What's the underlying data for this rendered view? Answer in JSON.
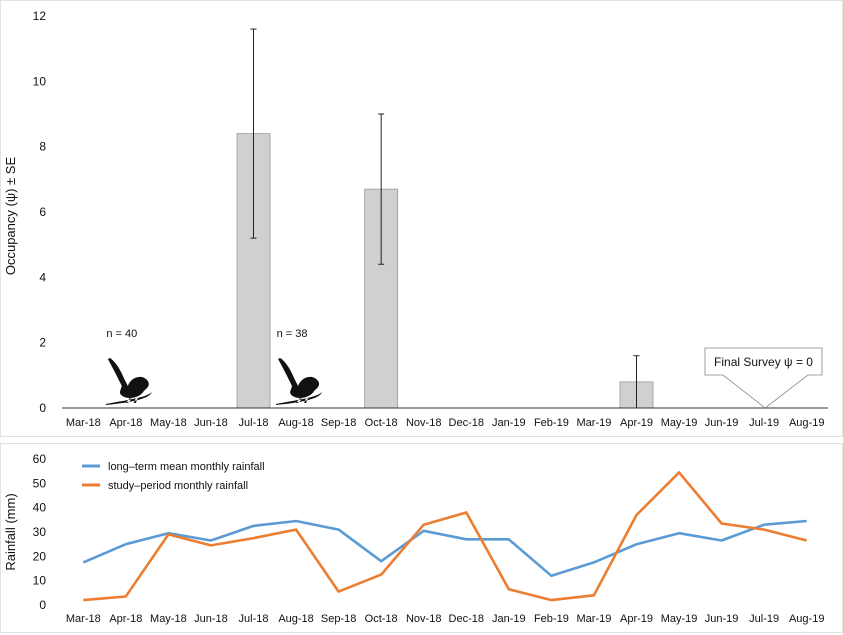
{
  "chart_data": [
    {
      "type": "bar",
      "ylabel": "Occupancy (ψ) ± SE",
      "ylim": [
        0,
        12
      ],
      "yticks": [
        0,
        2,
        4,
        6,
        8,
        10,
        12
      ],
      "grid": false,
      "categories": [
        "Mar-18",
        "Apr-18",
        "May-18",
        "Jun-18",
        "Jul-18",
        "Aug-18",
        "Sep-18",
        "Oct-18",
        "Nov-18",
        "Dec-18",
        "Jan-19",
        "Feb-19",
        "Mar-19",
        "Apr-19",
        "May-19",
        "Jun-19",
        "Jul-19",
        "Aug-19"
      ],
      "values": [
        0,
        0,
        0,
        0,
        8.4,
        0,
        0,
        6.7,
        0,
        0,
        0,
        0,
        0,
        0.8,
        0,
        0,
        0,
        0
      ],
      "errors": [
        null,
        null,
        null,
        null,
        3.2,
        null,
        null,
        2.3,
        null,
        null,
        null,
        null,
        null,
        0.8,
        null,
        null,
        null,
        null
      ],
      "bar_color": "#d0d0d0",
      "annotations": [
        {
          "text": "n = 40",
          "category": "Apr-18",
          "y": 2.3,
          "kind": "bird-silhouette"
        },
        {
          "text": "n = 38",
          "category": "Aug-18",
          "y": 2.3,
          "kind": "bird-silhouette"
        },
        {
          "text": "Final Survey ψ = 0",
          "category": "Jul-19",
          "y": 0,
          "kind": "callout"
        }
      ]
    },
    {
      "type": "line",
      "ylabel": "Rainfall (mm)",
      "ylim": [
        0,
        60
      ],
      "yticks": [
        0,
        10,
        20,
        30,
        40,
        50,
        60
      ],
      "grid": false,
      "legend": "top-left",
      "categories": [
        "Mar-18",
        "Apr-18",
        "May-18",
        "Jun-18",
        "Jul-18",
        "Aug-18",
        "Sep-18",
        "Oct-18",
        "Nov-18",
        "Dec-18",
        "Jan-19",
        "Feb-19",
        "Mar-19",
        "Apr-19",
        "May-19",
        "Jun-19",
        "Jul-19",
        "Aug-19"
      ],
      "series": [
        {
          "name": "long–term mean monthly rainfall",
          "color": "#5b9bd5",
          "values": [
            17.5,
            25,
            29.5,
            26.5,
            32.5,
            34.5,
            31,
            18,
            30.5,
            27,
            27,
            12,
            17.5,
            25,
            29.5,
            26.5,
            33,
            34.5
          ]
        },
        {
          "name": "study–period monthly rainfall",
          "color": "#ed7d31",
          "values": [
            2,
            3.5,
            29,
            24.5,
            27.5,
            31,
            5.5,
            12.5,
            33,
            38,
            6.5,
            2,
            4,
            37,
            54.5,
            33.5,
            31,
            26.5
          ]
        }
      ]
    }
  ]
}
